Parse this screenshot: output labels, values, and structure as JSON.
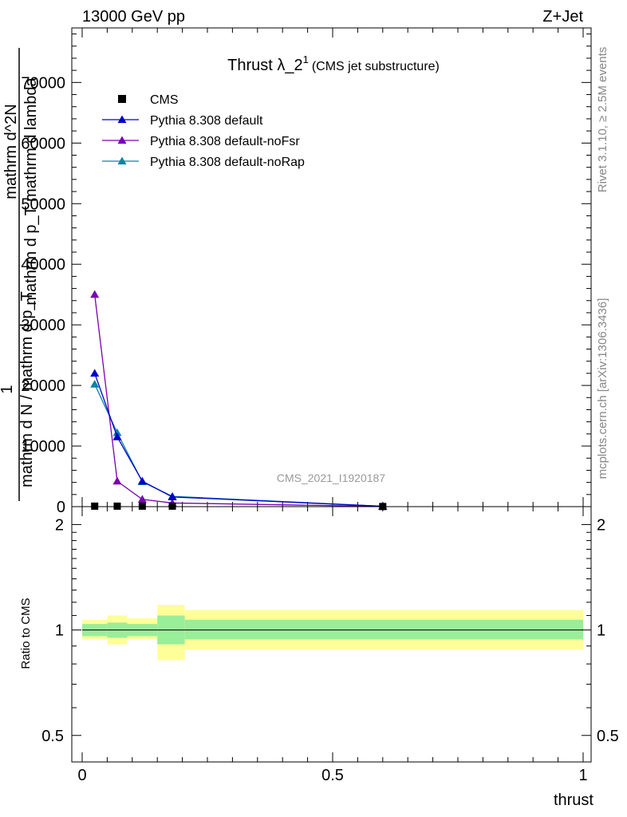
{
  "header": {
    "energy_label": "13000 GeV pp",
    "process_label": "Z+Jet"
  },
  "side_labels": {
    "rivet": "Rivet 3.1.10, ≥ 2.5M events",
    "mcplots": "mcplots.cern.ch [arXiv:1306.3436]"
  },
  "watermark": "CMS_2021_I1920187",
  "chart_data": [
    {
      "type": "line",
      "title_main": "Thrust λ_2",
      "title_sup": "1",
      "title_sub": "(CMS jet substructure)",
      "ylabel_lines": [
        "1",
        "mathrm d N / mathrm d p_T",
        "mathrm d^2N",
        "mathrm d p_T mathrm d lambda"
      ],
      "xlim": [
        0,
        1
      ],
      "ylim": [
        0,
        79000
      ],
      "yticks": [
        0,
        10000,
        20000,
        30000,
        40000,
        50000,
        60000,
        70000
      ],
      "ytick_labels": [
        "0",
        "10000",
        "20000",
        "30000",
        "40000",
        "50000",
        "60000",
        "70000"
      ],
      "legend_position": "top-left",
      "grid": false,
      "series": [
        {
          "name": "CMS",
          "color": "#000000",
          "marker": "square",
          "x": [
            0.025,
            0.07,
            0.12,
            0.18,
            0.6
          ],
          "y": [
            80,
            80,
            80,
            80,
            20
          ]
        },
        {
          "name": "Pythia 8.308 default",
          "color": "#0000cc",
          "marker": "triangle",
          "x": [
            0.025,
            0.07,
            0.12,
            0.18,
            0.6
          ],
          "y": [
            22000,
            11500,
            4200,
            1600,
            60
          ]
        },
        {
          "name": "Pythia 8.308 default-noFsr",
          "color": "#7a00b0",
          "marker": "triangle",
          "x": [
            0.025,
            0.07,
            0.12,
            0.18,
            0.6
          ],
          "y": [
            35000,
            4200,
            1200,
            600,
            30
          ]
        },
        {
          "name": "Pythia 8.308 default-noRap",
          "color": "#0a84a8",
          "marker": "triangle",
          "x": [
            0.025,
            0.07,
            0.12,
            0.18,
            0.6
          ],
          "y": [
            20200,
            12200,
            4100,
            1700,
            60
          ]
        }
      ]
    },
    {
      "type": "area",
      "ylabel": "Ratio to CMS",
      "xlabel": "thrust",
      "log_y": true,
      "ylim": [
        0.42,
        2.25
      ],
      "yticks": [
        0.5,
        1,
        2
      ],
      "ytick_labels": [
        "0.5",
        "1",
        "2"
      ],
      "xticks": [
        0,
        0.5,
        1
      ],
      "xtick_labels": [
        "0",
        "0.5",
        "1"
      ],
      "reference_line": 1,
      "bands": [
        {
          "x0": 0.0,
          "x1": 0.05,
          "inner": [
            0.96,
            1.04
          ],
          "outer": [
            0.94,
            1.07
          ]
        },
        {
          "x0": 0.05,
          "x1": 0.09,
          "inner": [
            0.95,
            1.05
          ],
          "outer": [
            0.91,
            1.1
          ]
        },
        {
          "x0": 0.09,
          "x1": 0.15,
          "inner": [
            0.96,
            1.04
          ],
          "outer": [
            0.94,
            1.08
          ]
        },
        {
          "x0": 0.15,
          "x1": 0.205,
          "inner": [
            0.91,
            1.1
          ],
          "outer": [
            0.82,
            1.18
          ]
        },
        {
          "x0": 0.205,
          "x1": 1.0,
          "inner": [
            0.94,
            1.07
          ],
          "outer": [
            0.88,
            1.14
          ]
        }
      ],
      "band_colors": {
        "inner": "#99ee99",
        "outer": "#ffff99"
      }
    }
  ]
}
